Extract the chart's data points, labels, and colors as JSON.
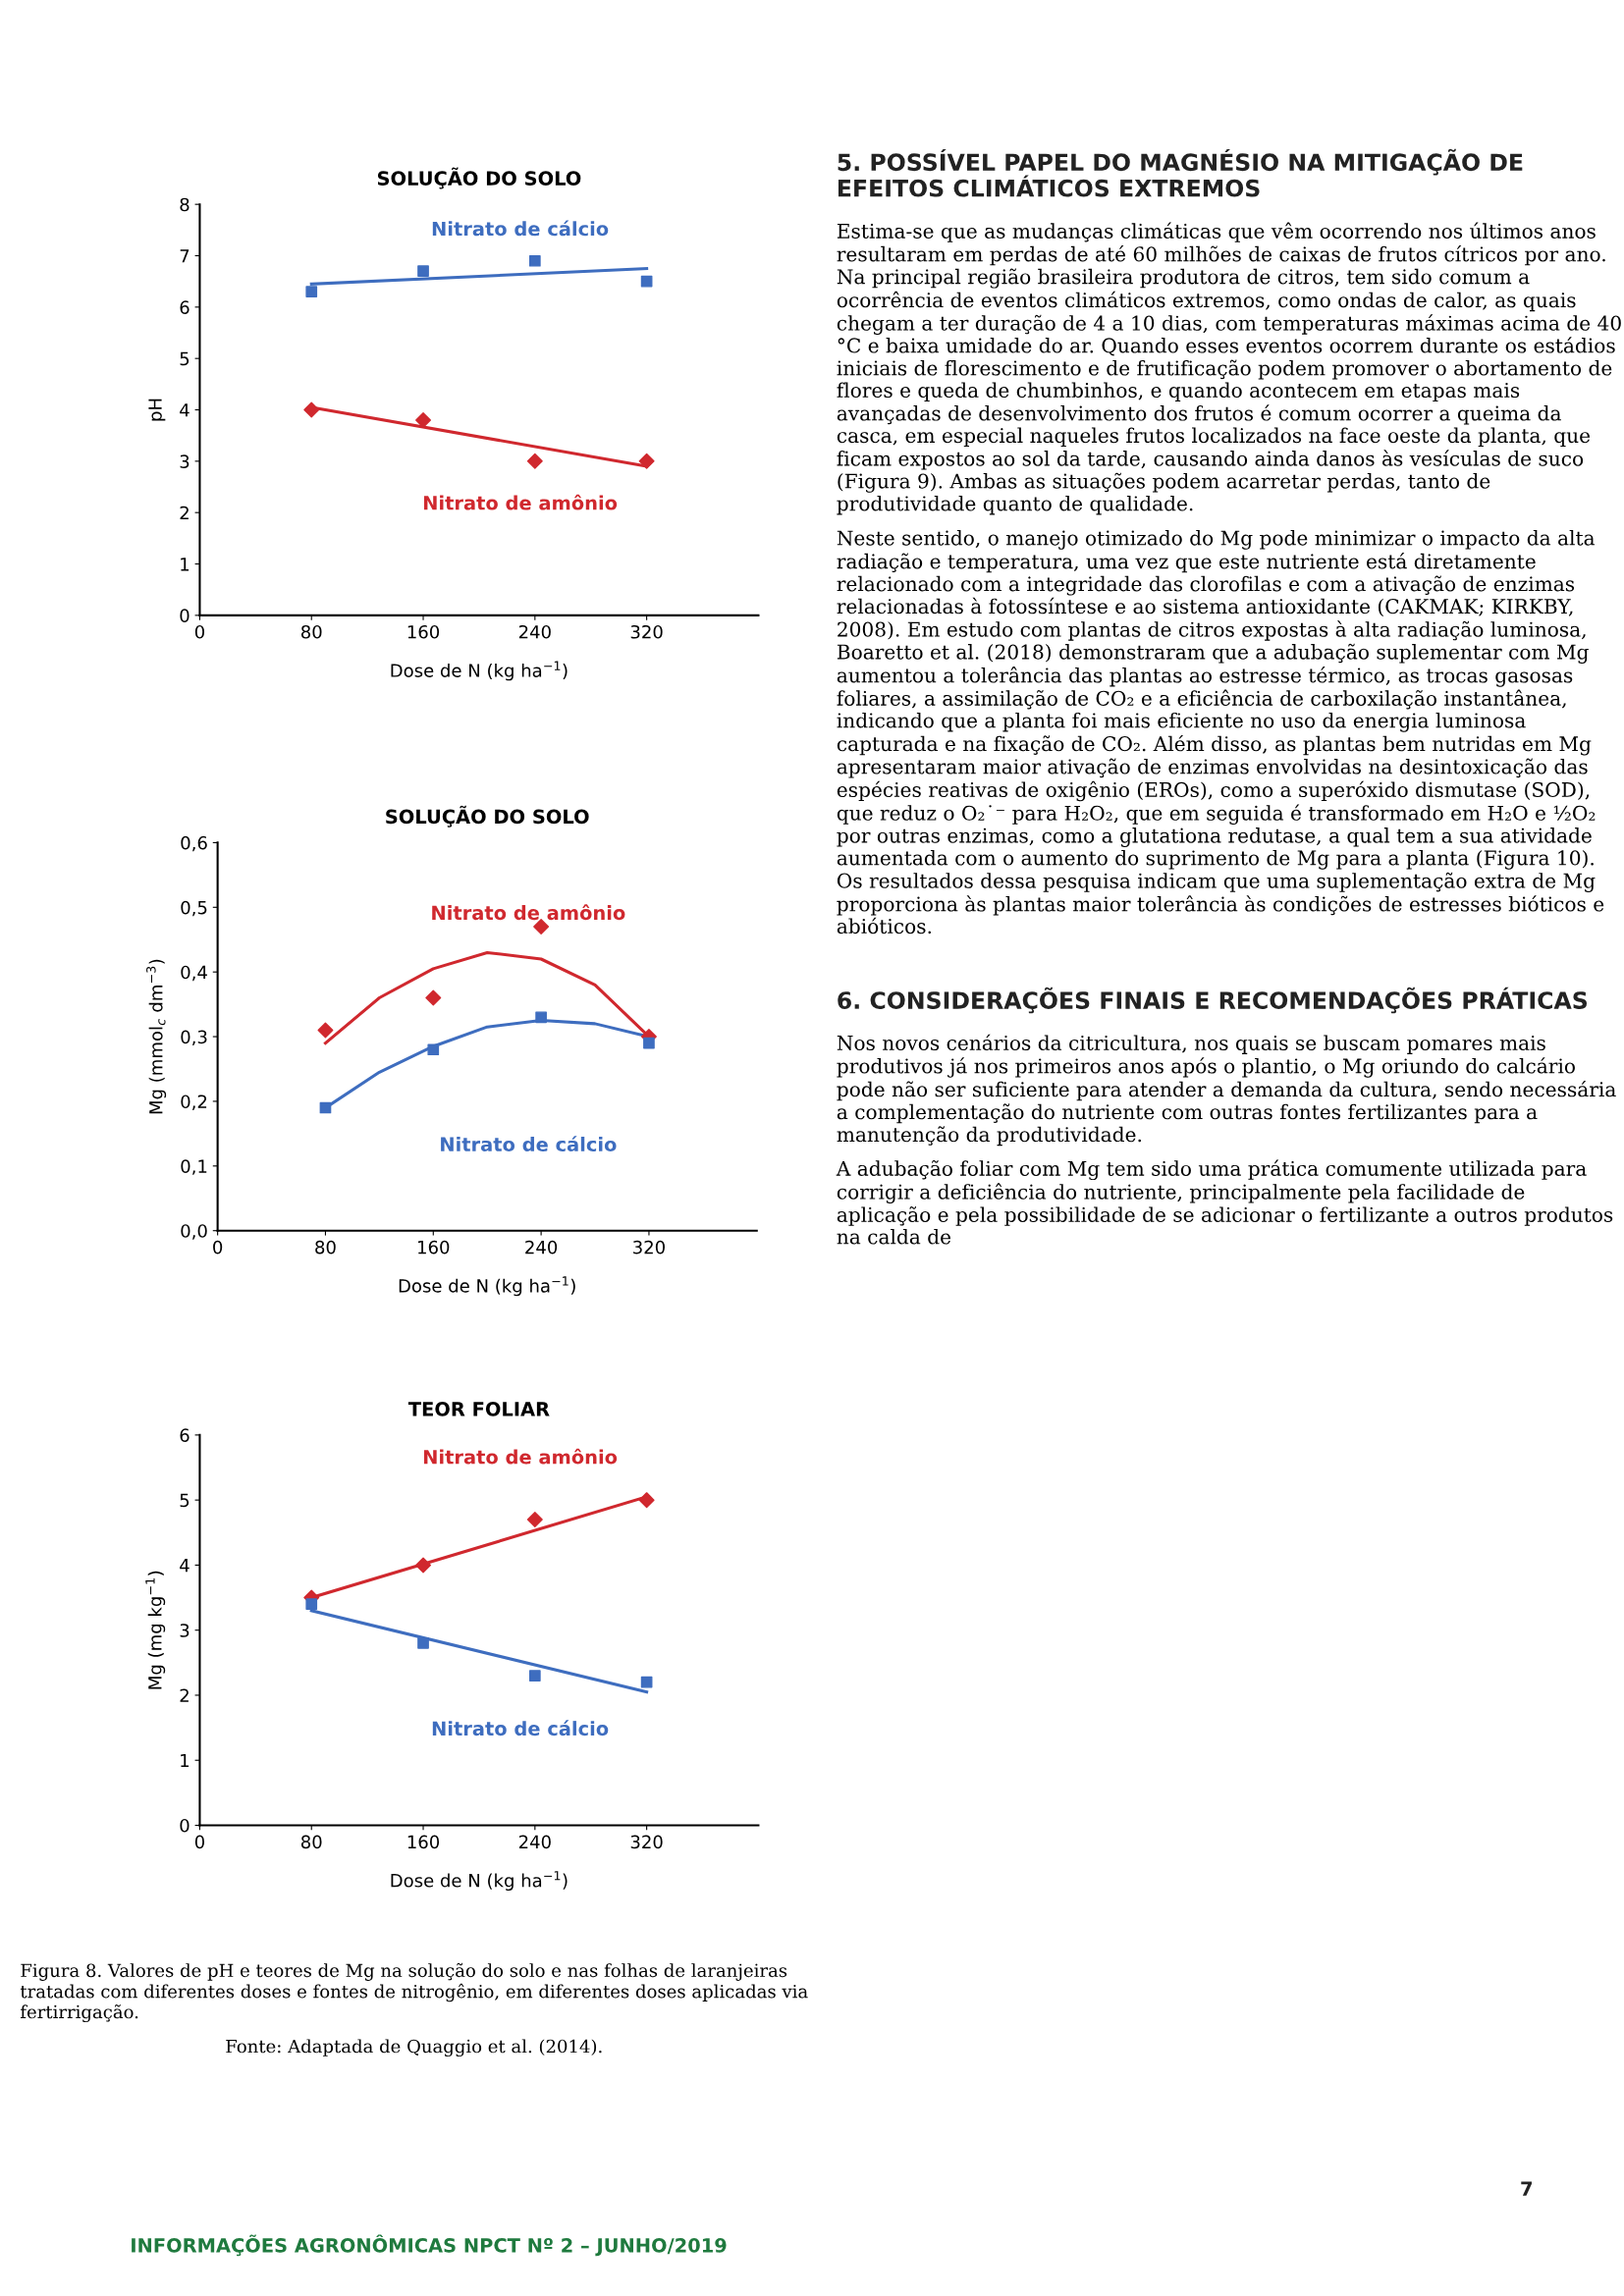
{
  "chart_data": [
    {
      "type": "scatter",
      "title": "SOLUÇÃO DO SOLO",
      "xlabel": "Dose de N (kg ha$^{−1}$)",
      "ylabel": "pH",
      "xlim": [
        0,
        400
      ],
      "xticks": [
        0,
        80,
        160,
        240,
        320
      ],
      "ylim": [
        0,
        8
      ],
      "yticks": [
        0,
        1,
        2,
        3,
        4,
        5,
        6,
        7,
        8
      ],
      "grid": false,
      "legend": false,
      "series": [
        {
          "color": "#3e6dbf",
          "x": [
            80,
            160,
            240,
            320
          ],
          "values": [
            6.3,
            6.7,
            6.9,
            6.5
          ],
          "marker": "square"
        },
        {
          "color": "#d0282e",
          "x": [
            80,
            160,
            240,
            320
          ],
          "values": [
            4.0,
            3.8,
            3.0,
            3.0
          ],
          "marker": "diamond"
        },
        {
          "type": "line",
          "name": "Nitrato de cálcio",
          "color": "#3e6dbf",
          "x": [
            80,
            320
          ],
          "values": [
            6.45,
            6.75
          ],
          "marker": "none"
        },
        {
          "type": "line",
          "name": "Nitrato de amônio",
          "color": "#d0282e",
          "x": [
            80,
            320
          ],
          "values": [
            4.05,
            2.9
          ],
          "marker": "none"
        }
      ]
    },
    {
      "type": "scatter",
      "title": "SOLUÇÃO DO SOLO",
      "xlabel": "Dose de N (kg ha$^{−1}$)",
      "ylabel": "Mg (mmol$_{c}$ dm$^{−3}$)",
      "xlim": [
        0,
        400
      ],
      "xticks": [
        0,
        80,
        160,
        240,
        320
      ],
      "ylim": [
        0,
        0.6
      ],
      "yticks": [
        {
          "value": 0,
          "label": "0,0"
        },
        {
          "value": 0.1,
          "label": "0,1"
        },
        {
          "value": 0.2,
          "label": "0,2"
        },
        {
          "value": 0.3,
          "label": "0,3"
        },
        {
          "value": 0.4,
          "label": "0,4"
        },
        {
          "value": 0.5,
          "label": "0,5"
        },
        {
          "value": 0.6,
          "label": "0,6"
        }
      ],
      "grid": false,
      "legend": false,
      "series": [
        {
          "color": "#d0282e",
          "x": [
            80,
            160,
            240,
            320
          ],
          "values": [
            0.31,
            0.36,
            0.47,
            0.3
          ],
          "marker": "diamond"
        },
        {
          "color": "#3e6dbf",
          "x": [
            80,
            160,
            240,
            320
          ],
          "values": [
            0.19,
            0.28,
            0.33,
            0.29
          ],
          "marker": "square"
        },
        {
          "type": "line",
          "name": "Nitrato de amônio",
          "color": "#d0282e",
          "x": [
            80,
            120,
            160,
            200,
            240,
            280,
            320
          ],
          "values": [
            0.29,
            0.36,
            0.405,
            0.43,
            0.42,
            0.38,
            0.3
          ],
          "marker": "none"
        },
        {
          "type": "line",
          "name": "Nitrato de cálcio",
          "color": "#3e6dbf",
          "x": [
            80,
            120,
            160,
            200,
            240,
            280,
            320
          ],
          "values": [
            0.19,
            0.245,
            0.285,
            0.315,
            0.325,
            0.32,
            0.3
          ],
          "marker": "none"
        }
      ]
    },
    {
      "type": "scatter",
      "title": "TEOR FOLIAR",
      "xlabel": "Dose de N (kg ha$^{−1}$)",
      "ylabel": "Mg (mg kg$^{−1}$)",
      "xlim": [
        0,
        400
      ],
      "xticks": [
        0,
        80,
        160,
        240,
        320
      ],
      "ylim": [
        0,
        6
      ],
      "yticks": [
        0,
        1,
        2,
        3,
        4,
        5,
        6
      ],
      "grid": false,
      "legend": false,
      "series": [
        {
          "color": "#d0282e",
          "x": [
            80,
            160,
            240,
            320
          ],
          "values": [
            3.5,
            4.0,
            4.7,
            5.0
          ],
          "marker": "diamond"
        },
        {
          "color": "#3e6dbf",
          "x": [
            80,
            160,
            240,
            320
          ],
          "values": [
            3.4,
            2.8,
            2.3,
            2.2
          ],
          "marker": "square"
        },
        {
          "type": "line",
          "name": "Nitrato de amônio",
          "color": "#d0282e",
          "x": [
            80,
            320
          ],
          "values": [
            3.5,
            5.05
          ],
          "marker": "none"
        },
        {
          "type": "line",
          "name": "Nitrato de cálcio",
          "color": "#3e6dbf",
          "x": [
            80,
            320
          ],
          "values": [
            3.3,
            2.05
          ],
          "marker": "none"
        }
      ],
      "annotations": [
        "Figura 8. Valores de pH e teores de Mg na solução do solo e nas folhas de laranjeiras tratadas com diferentes doses e fontes de nitrogênio, em diferentes doses aplicadas via fertirrigação.",
        "Fonte: Adaptada de Quaggio et al. (2014)."
      ]
    },
    {
      "type": "other",
      "title": "5. POSSÍVEL PAPEL DO MAGNÉSIO NA MITIGAÇÃO DE EFEITOS CLIMÁTICOS EXTREMOS",
      "annotations": [
        "Estima-se que as mudanças climáticas que vêm ocorrendo nos últimos anos resultaram em perdas de até 60 milhões de caixas de frutos cítricos por ano. Na principal região brasileira produtora de citros, tem sido comum a ocorrência de eventos climáticos extremos, como ondas de calor, as quais chegam a ter duração de 4 a 10 dias, com temperaturas máximas acima de 40 °C e baixa umidade do ar. Quando esses eventos ocorrem durante os estádios iniciais de florescimento e de frutificação podem promover o abortamento de flores e queda de chumbinhos, e quando acontecem em etapas mais avançadas de desenvolvimento dos frutos é comum ocorrer a queima da casca, em especial naqueles frutos localizados na face oeste da planta, que ficam expostos ao sol da tarde, causando ainda danos às vesículas de suco (Figura 9). Ambas as situações podem acarretar perdas, tanto de produtividade quanto de qualidade.",
        "Neste sentido, o manejo otimizado do Mg pode minimizar o impacto da alta radiação e temperatura, uma vez que este nutriente está diretamente relacionado com a integridade das clorofilas e com a ativação de enzimas relacionadas à fotossíntese e ao sistema antioxidante (CAKMAK; KIRKBY, 2008). Em estudo com plantas de citros expostas à alta radiação luminosa, Boaretto et al. (2018) demonstraram que a adubação suplementar com Mg aumentou a tolerância das plantas ao estresse térmico, as trocas gasosas foliares, a assimilação de CO₂ e a eficiência de carboxilação instantânea, indicando que a planta foi mais eficiente no uso da energia luminosa capturada e na fixação de CO₂. Além disso, as plantas bem nutridas em Mg apresentaram maior ativação de enzimas envolvidas na desintoxicação das espécies reativas de oxigênio (EROs), como a superóxido dismutase (SOD), que reduz o O₂˙⁻ para H₂O₂, que em seguida é transformado em H₂O e ½O₂ por outras enzimas, como a glutationa redutase, a qual tem a sua atividade aumentada com o aumento do suprimento de Mg para a planta (Figura 10). Os resultados dessa pesquisa indicam que uma suplementação extra de Mg proporciona às plantas maior tolerância às condições de estresses bióticos e abióticos."
      ]
    },
    {
      "type": "other",
      "title": "6. CONSIDERAÇÕES FINAIS E RECOMENDAÇÕES PRÁTICAS",
      "annotations": [
        "Nos novos cenários da citricultura, nos quais se buscam pomares mais produtivos já nos primeiros anos após o plantio, o Mg oriundo do calcário pode não ser suficiente para atender a demanda da cultura, sendo necessária a complementação do nutriente com outras fontes fertilizantes para a manutenção da produtividade.",
        "A adubação foliar com Mg tem sido uma prática comumente utilizada para corrigir a deficiência do nutriente, principalmente pela facilidade de aplicação e pela possibilidade de se adicionar o fertilizante a outros produtos na calda de"
      ]
    },
    {
      "type": "other",
      "annotations": [
        "INFORMAÇÕES AGRONÔMICAS NPCT Nº 2 – JUNHO/2019",
        "7"
      ]
    }
  ]
}
